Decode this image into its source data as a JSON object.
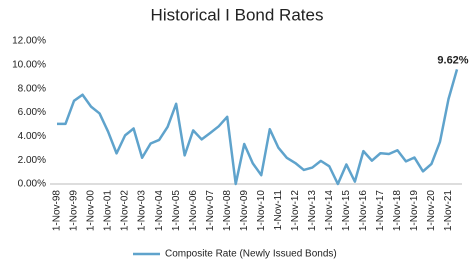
{
  "chart_data": {
    "type": "line",
    "title": "Historical I Bond Rates",
    "categories": [
      "1-Nov-98",
      null,
      "1-Nov-99",
      null,
      "1-Nov-00",
      null,
      "1-Nov-01",
      null,
      "1-Nov-02",
      null,
      "1-Nov-03",
      null,
      "1-Nov-04",
      null,
      "1-Nov-05",
      null,
      "1-Nov-06",
      null,
      "1-Nov-07",
      null,
      "1-Nov-08",
      null,
      "1-Nov-09",
      null,
      "1-Nov-10",
      null,
      "1-Nov-11",
      null,
      "1-Nov-12",
      null,
      "1-Nov-13",
      null,
      "1-Nov-14",
      null,
      "1-Nov-15",
      null,
      "1-Nov-16",
      null,
      "1-Nov-17",
      null,
      "1-Nov-18",
      null,
      "1-Nov-19",
      null,
      "1-Nov-20",
      null,
      "1-Nov-21",
      null
    ],
    "series": [
      {
        "name": "Composite Rate (Newly Issued Bonds)",
        "color": "#5fa3cc",
        "values": [
          5.05,
          5.05,
          6.98,
          7.49,
          6.49,
          5.92,
          4.4,
          2.57,
          4.08,
          4.66,
          2.2,
          3.4,
          3.7,
          4.8,
          6.73,
          2.4,
          4.5,
          3.74,
          4.28,
          4.84,
          5.64,
          0.0,
          3.36,
          1.74,
          0.74,
          4.6,
          3.06,
          2.2,
          1.76,
          1.18,
          1.38,
          1.94,
          1.48,
          0.0,
          1.64,
          0.2,
          2.76,
          1.96,
          2.58,
          2.52,
          2.83,
          1.9,
          2.22,
          1.06,
          1.68,
          3.54,
          7.12,
          9.62
        ],
        "value_labels": [
          null,
          null,
          null,
          null,
          null,
          null,
          null,
          null,
          null,
          null,
          null,
          null,
          null,
          null,
          null,
          null,
          null,
          null,
          null,
          null,
          null,
          null,
          null,
          null,
          null,
          null,
          null,
          null,
          null,
          null,
          null,
          null,
          null,
          null,
          null,
          null,
          null,
          null,
          null,
          null,
          null,
          null,
          null,
          null,
          null,
          null,
          null,
          "9.62%"
        ]
      }
    ],
    "ylim": [
      0,
      12
    ],
    "yticks": [
      {
        "value": 0,
        "label": "0.00%"
      },
      {
        "value": 2,
        "label": "2.00%"
      },
      {
        "value": 4,
        "label": "4.00%"
      },
      {
        "value": 6,
        "label": "6.00%"
      },
      {
        "value": 8,
        "label": "8.00%"
      },
      {
        "value": 10,
        "label": "10.00%"
      },
      {
        "value": 12,
        "label": "12.00%"
      }
    ],
    "grid": false,
    "legend": "bottom"
  }
}
